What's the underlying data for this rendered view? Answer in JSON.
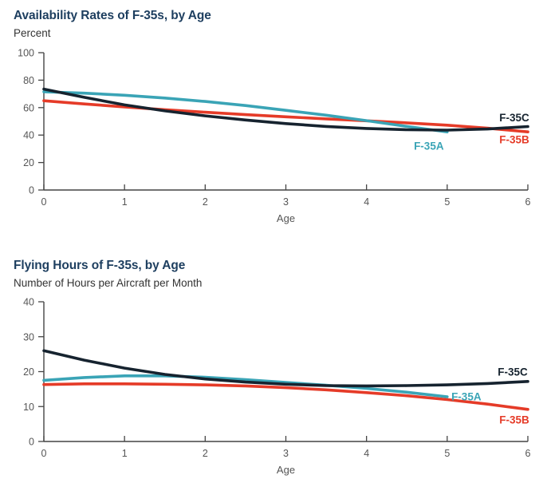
{
  "page": {
    "background_color": "#ffffff"
  },
  "style": {
    "title_color": "#1d3e5f",
    "subtitle_color": "#333333",
    "axis_color": "#444444",
    "tick_label_color": "#555555",
    "axis_title_color": "#555555"
  },
  "chart_data": [
    {
      "type": "line",
      "title": "Availability Rates of F-35s, by Age",
      "subtitle": "Percent",
      "xlabel": "Age",
      "xlim": [
        0,
        6
      ],
      "ylim": [
        0,
        100
      ],
      "x_ticks": [
        0,
        1,
        2,
        3,
        4,
        5,
        6
      ],
      "y_ticks": [
        0,
        20,
        40,
        60,
        80,
        100
      ],
      "grid": false,
      "legend_position": "end-of-line labels",
      "series": [
        {
          "name": "F-35B",
          "color": "#e53b28",
          "x": [
            0,
            0.5,
            1,
            1.5,
            2,
            2.5,
            3,
            3.5,
            4,
            4.5,
            5,
            5.5,
            6
          ],
          "y": [
            65,
            62.7,
            60.5,
            58.5,
            56.6,
            54.9,
            53.3,
            51.8,
            50.4,
            48.9,
            47.2,
            45,
            42.3
          ],
          "label": {
            "text": "F-35B",
            "dx": -17,
            "dy": 10
          }
        },
        {
          "name": "F-35A",
          "color": "#3aa4b6",
          "x": [
            0,
            0.5,
            1,
            1.5,
            2,
            2.5,
            3,
            3.5,
            4,
            4.5,
            5
          ],
          "y": [
            71.5,
            70.5,
            69,
            67,
            64.5,
            61.5,
            58,
            54.5,
            50.5,
            46.3,
            42.3
          ],
          "label": {
            "text": "F-35A",
            "dx": -23,
            "dy": 18
          }
        },
        {
          "name": "F-35C",
          "color": "#16232f",
          "x": [
            0,
            0.5,
            1,
            1.5,
            2,
            2.5,
            3,
            3.5,
            4,
            4.5,
            5,
            5.5,
            6
          ],
          "y": [
            73.5,
            67.5,
            62,
            57.6,
            54,
            51,
            48.4,
            46.3,
            44.8,
            43.9,
            43.6,
            44.4,
            46.2
          ],
          "label": {
            "text": "F-35C",
            "dx": -17,
            "dy": -11
          }
        }
      ]
    },
    {
      "type": "line",
      "title": "Flying Hours of F-35s, by Age",
      "subtitle": "Number of Hours per Aircraft per Month",
      "xlabel": "Age",
      "xlim": [
        0,
        6
      ],
      "ylim": [
        0,
        40
      ],
      "x_ticks": [
        0,
        1,
        2,
        3,
        4,
        5,
        6
      ],
      "y_ticks": [
        0,
        10,
        20,
        30,
        40
      ],
      "grid": false,
      "legend_position": "end-of-line labels",
      "series": [
        {
          "name": "F-35B",
          "color": "#e53b28",
          "x": [
            0,
            0.5,
            1,
            1.5,
            2,
            2.5,
            3,
            3.5,
            4,
            4.5,
            5,
            5.5,
            6
          ],
          "y": [
            16.3,
            16.5,
            16.5,
            16.4,
            16.2,
            15.9,
            15.4,
            14.8,
            14,
            13.1,
            12,
            10.7,
            9.2
          ],
          "label": {
            "text": "F-35B",
            "dx": -17,
            "dy": 13
          }
        },
        {
          "name": "F-35A",
          "color": "#3aa4b6",
          "x": [
            0,
            0.5,
            1,
            1.5,
            2,
            2.5,
            3,
            3.5,
            4,
            4.5,
            5
          ],
          "y": [
            17.5,
            18.3,
            18.8,
            18.8,
            18.4,
            17.7,
            16.9,
            16.1,
            15.2,
            14.1,
            12.8
          ],
          "label": {
            "text": "F-35A",
            "dx": 24,
            "dy": 0
          }
        },
        {
          "name": "F-35C",
          "color": "#16232f",
          "x": [
            0,
            0.5,
            1,
            1.5,
            2,
            2.5,
            3,
            3.5,
            4,
            4.5,
            5,
            5.5,
            6
          ],
          "y": [
            26,
            23.3,
            21,
            19.2,
            17.9,
            17,
            16.4,
            16,
            15.9,
            16,
            16.2,
            16.6,
            17.2
          ],
          "label": {
            "text": "F-35C",
            "dx": -19,
            "dy": -12
          }
        }
      ]
    }
  ]
}
